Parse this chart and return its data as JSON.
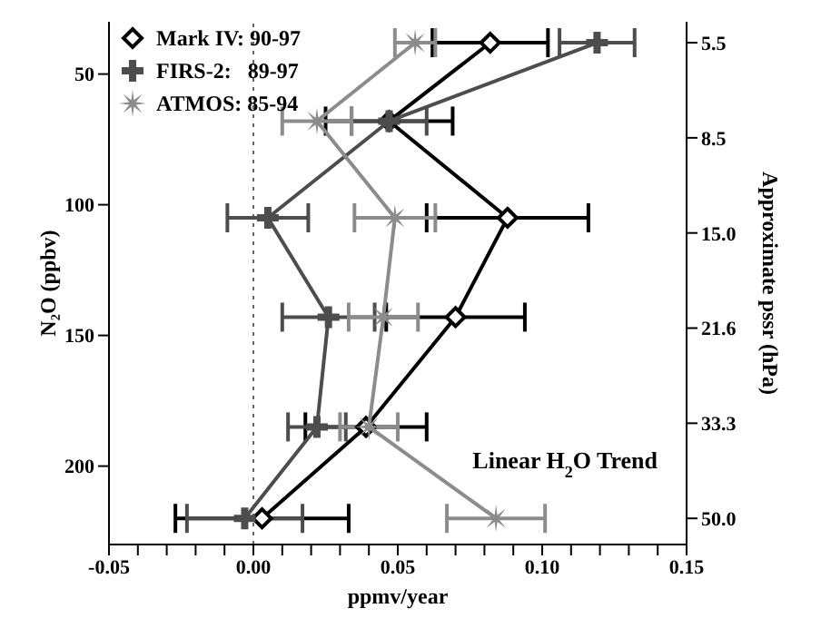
{
  "chart_data": {
    "type": "line",
    "xlabel": "ppmv/year",
    "ylabel": "N₂O (ppbv)",
    "y2label": "Approximate pssr (hPa)",
    "annotations": [
      "Linear H$_{2}$O Trend"
    ],
    "legend": "top left",
    "line_style": "solid",
    "xlim": [
      -0.05,
      0.15
    ],
    "xticks": [
      {
        "value": -0.05,
        "label": "-0.05"
      },
      {
        "value": -0.04,
        "label": null
      },
      {
        "value": -0.03,
        "label": null
      },
      {
        "value": -0.02,
        "label": null
      },
      {
        "value": -0.01,
        "label": null
      },
      {
        "value": 0,
        "label": "0.00"
      },
      {
        "value": 0.01,
        "label": null
      },
      {
        "value": 0.02,
        "label": null
      },
      {
        "value": 0.03,
        "label": null
      },
      {
        "value": 0.04,
        "label": null
      },
      {
        "value": 0.05,
        "label": "0.05"
      },
      {
        "value": 0.06,
        "label": null
      },
      {
        "value": 0.07,
        "label": null
      },
      {
        "value": 0.08,
        "label": null
      },
      {
        "value": 0.09,
        "label": null
      },
      {
        "value": 0.1,
        "label": "0.10"
      },
      {
        "value": 0.11,
        "label": null
      },
      {
        "value": 0.12,
        "label": null
      },
      {
        "value": 0.13,
        "label": null
      },
      {
        "value": 0.14,
        "label": null
      },
      {
        "value": 0.15,
        "label": "0.15"
      }
    ],
    "ylim": [
      230,
      30
    ],
    "yticks": [
      50,
      100,
      150,
      200
    ],
    "y2_categories": [
      "5.5",
      "8.5",
      "15.0",
      "21.6",
      "33.3",
      "50.0"
    ],
    "ref_lines": [
      {
        "axis": "x",
        "value": 0,
        "color": "#666666",
        "line_style": "dotted"
      }
    ],
    "series": [
      {
        "name": "Mark IV: 90-97",
        "color": "#000000",
        "marker": "diamond",
        "x": [
          0.082,
          0.047,
          0.088,
          0.07,
          0.039,
          0.003
        ],
        "values": [
          38,
          68,
          105,
          143,
          185,
          220
        ],
        "xerrors": [
          0.02,
          0.022,
          0.028,
          0.024,
          0.021,
          0.03
        ]
      },
      {
        "name": "FIRS-2:   89-97",
        "color": "#4d4d4d",
        "marker": "cross",
        "x": [
          0.119,
          0.047,
          0.005,
          0.026,
          0.022,
          -0.003
        ],
        "values": [
          38,
          68,
          105,
          143,
          185,
          220
        ],
        "xerrors": [
          0.013,
          0.013,
          0.014,
          0.016,
          0.01,
          0.02
        ]
      },
      {
        "name": "ATMOS: 85-94",
        "color": "#8c8c8c",
        "marker": "star",
        "x": [
          0.056,
          0.022,
          0.049,
          0.045,
          0.04,
          0.084
        ],
        "values": [
          38,
          68,
          105,
          143,
          185,
          220
        ],
        "xerrors": [
          0.007,
          0.012,
          0.014,
          0.012,
          0.01,
          0.017
        ]
      }
    ]
  }
}
